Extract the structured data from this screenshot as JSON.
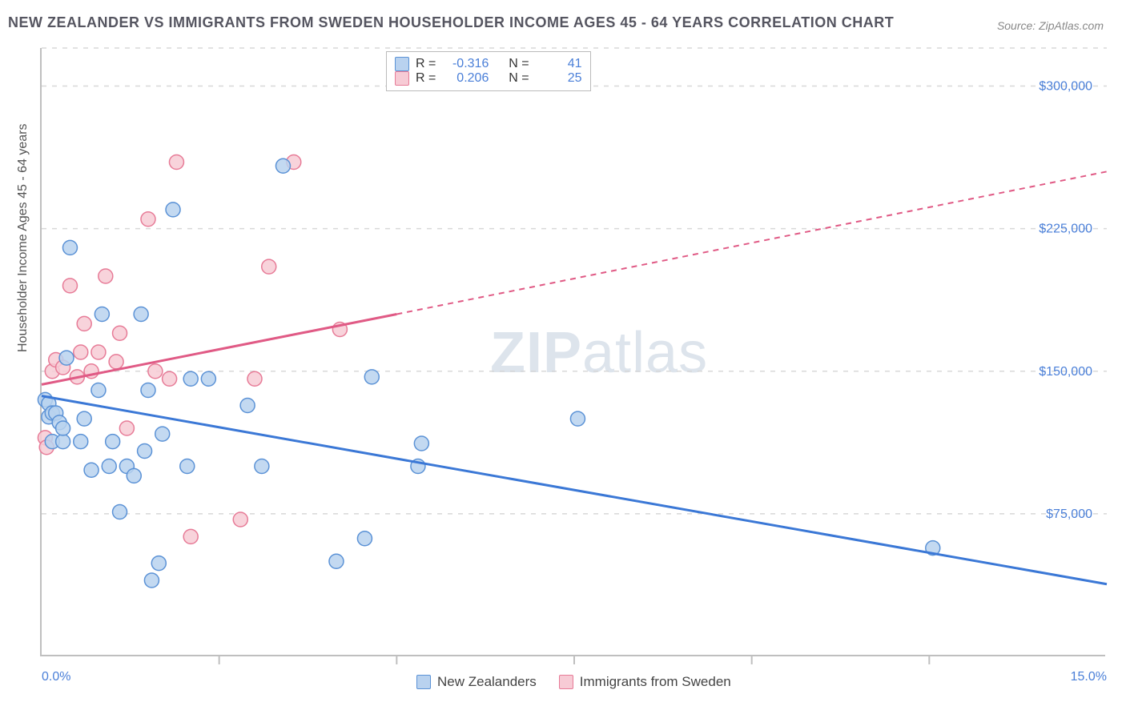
{
  "title": "NEW ZEALANDER VS IMMIGRANTS FROM SWEDEN HOUSEHOLDER INCOME AGES 45 - 64 YEARS CORRELATION CHART",
  "source": "Source: ZipAtlas.com",
  "watermark_bold": "ZIP",
  "watermark_rest": "atlas",
  "ylabel": "Householder Income Ages 45 - 64 years",
  "chart": {
    "type": "scatter",
    "xlim": [
      0,
      15
    ],
    "ylim": [
      0,
      320000
    ],
    "yticks": [
      75000,
      150000,
      225000,
      300000
    ],
    "ytick_labels": [
      "$75,000",
      "$150,000",
      "$225,000",
      "$300,000"
    ],
    "xtick_major": [
      0,
      15
    ],
    "xtick_major_labels": [
      "0.0%",
      "15.0%"
    ],
    "xtick_minor": [
      2.5,
      5,
      7.5,
      10,
      12.5
    ],
    "grid_color": "#d8d8d8",
    "axis_color": "#bfbfbf",
    "background": "#ffffff",
    "label_color": "#4a7fd8",
    "marker_radius": 9,
    "marker_stroke_width": 1.5,
    "line_width": 3,
    "dash_pattern": "7,6"
  },
  "series": [
    {
      "id": "nz",
      "name": "New Zealanders",
      "fill": "#b9d2ef",
      "stroke": "#5b92d6",
      "line_color": "#3b78d6",
      "R": "-0.316",
      "N": "41",
      "trend_solid": {
        "x1": 0,
        "y1": 137000,
        "x2": 15,
        "y2": 38000
      },
      "points": [
        [
          0.05,
          135000
        ],
        [
          0.1,
          133000
        ],
        [
          0.1,
          126000
        ],
        [
          0.15,
          128000
        ],
        [
          0.15,
          113000
        ],
        [
          0.2,
          128000
        ],
        [
          0.25,
          123000
        ],
        [
          0.3,
          113000
        ],
        [
          0.3,
          120000
        ],
        [
          0.35,
          157000
        ],
        [
          0.4,
          215000
        ],
        [
          0.55,
          113000
        ],
        [
          0.6,
          125000
        ],
        [
          0.7,
          98000
        ],
        [
          0.8,
          140000
        ],
        [
          0.85,
          180000
        ],
        [
          0.95,
          100000
        ],
        [
          1.0,
          113000
        ],
        [
          1.1,
          76000
        ],
        [
          1.2,
          100000
        ],
        [
          1.3,
          95000
        ],
        [
          1.4,
          180000
        ],
        [
          1.45,
          108000
        ],
        [
          1.5,
          140000
        ],
        [
          1.55,
          40000
        ],
        [
          1.65,
          49000
        ],
        [
          1.7,
          117000
        ],
        [
          1.85,
          235000
        ],
        [
          2.05,
          100000
        ],
        [
          2.1,
          146000
        ],
        [
          2.35,
          146000
        ],
        [
          2.9,
          132000
        ],
        [
          3.1,
          100000
        ],
        [
          3.4,
          258000
        ],
        [
          4.15,
          50000
        ],
        [
          4.55,
          62000
        ],
        [
          4.65,
          147000
        ],
        [
          5.3,
          100000
        ],
        [
          5.35,
          112000
        ],
        [
          7.55,
          125000
        ],
        [
          12.55,
          57000
        ]
      ]
    },
    {
      "id": "sw",
      "name": "Immigrants from Sweden",
      "fill": "#f7cbd5",
      "stroke": "#e77b97",
      "line_color": "#e05a85",
      "R": "0.206",
      "N": "25",
      "trend_solid": {
        "x1": 0,
        "y1": 143000,
        "x2": 5,
        "y2": 180000
      },
      "trend_dash": {
        "x1": 5,
        "y1": 180000,
        "x2": 15,
        "y2": 255000
      },
      "points": [
        [
          0.05,
          115000
        ],
        [
          0.07,
          110000
        ],
        [
          0.15,
          150000
        ],
        [
          0.2,
          156000
        ],
        [
          0.3,
          152000
        ],
        [
          0.4,
          195000
        ],
        [
          0.5,
          147000
        ],
        [
          0.55,
          160000
        ],
        [
          0.6,
          175000
        ],
        [
          0.7,
          150000
        ],
        [
          0.8,
          160000
        ],
        [
          0.9,
          200000
        ],
        [
          1.05,
          155000
        ],
        [
          1.1,
          170000
        ],
        [
          1.2,
          120000
        ],
        [
          1.5,
          230000
        ],
        [
          1.6,
          150000
        ],
        [
          1.8,
          146000
        ],
        [
          1.9,
          260000
        ],
        [
          2.1,
          63000
        ],
        [
          2.8,
          72000
        ],
        [
          3.0,
          146000
        ],
        [
          3.2,
          205000
        ],
        [
          3.55,
          260000
        ],
        [
          4.2,
          172000
        ]
      ]
    }
  ],
  "legend_top": {
    "R_label": "R =",
    "N_label": "N ="
  },
  "legend_bottom": {
    "items": [
      "New Zealanders",
      "Immigrants from Sweden"
    ]
  }
}
